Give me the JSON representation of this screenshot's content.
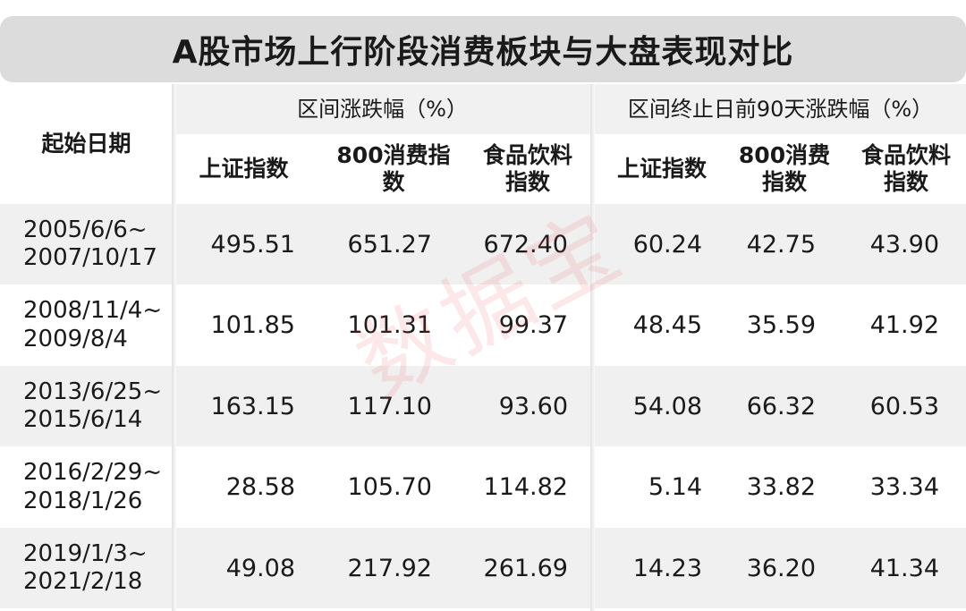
{
  "title": "A股市场上行阶段消费板块与大盘表现对比",
  "header": {
    "date": "起始日期",
    "group1": "区间涨跌幅（%）",
    "group2": "区间终止日前90天涨跌幅（%）",
    "cols": [
      "上证指数",
      "800消费指数",
      "食品饮料指数",
      "上证指数",
      "800消费指数",
      "食品饮料指数"
    ]
  },
  "rows": [
    {
      "start": "2005/6/6~",
      "end": "2007/10/17",
      "values": [
        "495.51",
        "651.27",
        "672.40",
        "60.24",
        "42.75",
        "43.90"
      ]
    },
    {
      "start": "2008/11/4~",
      "end": "2009/8/4",
      "values": [
        "101.85",
        "101.31",
        "99.37",
        "48.45",
        "35.59",
        "41.92"
      ]
    },
    {
      "start": "2013/6/25~",
      "end": "2015/6/14",
      "values": [
        "163.15",
        "117.10",
        "93.60",
        "54.08",
        "66.32",
        "60.53"
      ]
    },
    {
      "start": "2016/2/29~",
      "end": "2018/1/26",
      "values": [
        "28.58",
        "105.70",
        "114.82",
        "5.14",
        "33.82",
        "33.34"
      ]
    },
    {
      "start": "2019/1/3~",
      "end": "2021/2/18",
      "values": [
        "49.08",
        "217.92",
        "261.69",
        "14.23",
        "36.20",
        "41.34"
      ]
    }
  ],
  "watermark": "数据宝",
  "colors": {
    "title_bg": "#dcdcdc",
    "row_alt": "#f0f0f0",
    "watermark": "#e65050"
  }
}
